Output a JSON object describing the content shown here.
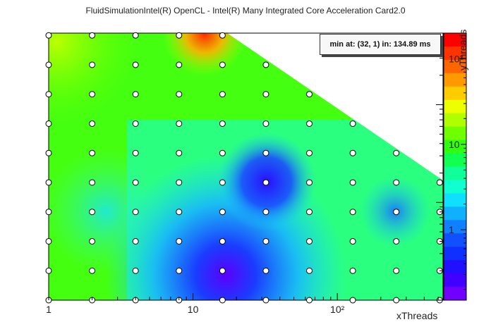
{
  "chart_data": {
    "type": "heatmap",
    "title": "FluidSimulationIntel(R) OpenCL - Intel(R) Many Integrated Core Acceleration Card2.0",
    "xlabel": "xThreads",
    "ylabel": "yThreads",
    "x_scale": "log",
    "y_scale": "log",
    "z_scale": "log",
    "annotation": "min at: (32, 1) in: 134.89 ms",
    "x_tick_labels": [
      "1",
      "10",
      "10²"
    ],
    "y_tick_labels": [
      "1",
      "10",
      "10²"
    ],
    "colorbar_tick_labels": [
      "1",
      "10",
      "10²"
    ],
    "x": [
      1,
      2,
      4,
      8,
      16,
      32,
      64,
      128,
      256,
      512
    ],
    "y": [
      1,
      2,
      4,
      8,
      16,
      32,
      64,
      128,
      256,
      512
    ],
    "sample_points": [
      {
        "x": 1,
        "y": 1
      },
      {
        "x": 1,
        "y": 2
      },
      {
        "x": 1,
        "y": 4
      },
      {
        "x": 1,
        "y": 8
      },
      {
        "x": 1,
        "y": 16
      },
      {
        "x": 1,
        "y": 32
      },
      {
        "x": 1,
        "y": 64
      },
      {
        "x": 1,
        "y": 128
      },
      {
        "x": 1,
        "y": 256
      },
      {
        "x": 1,
        "y": 512
      },
      {
        "x": 2,
        "y": 1
      },
      {
        "x": 2,
        "y": 2
      },
      {
        "x": 2,
        "y": 4
      },
      {
        "x": 2,
        "y": 8
      },
      {
        "x": 2,
        "y": 16
      },
      {
        "x": 2,
        "y": 32
      },
      {
        "x": 2,
        "y": 64
      },
      {
        "x": 2,
        "y": 128
      },
      {
        "x": 2,
        "y": 256
      },
      {
        "x": 2,
        "y": 512
      },
      {
        "x": 4,
        "y": 1
      },
      {
        "x": 4,
        "y": 2
      },
      {
        "x": 4,
        "y": 4
      },
      {
        "x": 4,
        "y": 8
      },
      {
        "x": 4,
        "y": 16
      },
      {
        "x": 4,
        "y": 32
      },
      {
        "x": 4,
        "y": 64
      },
      {
        "x": 4,
        "y": 128
      },
      {
        "x": 4,
        "y": 256
      },
      {
        "x": 4,
        "y": 512
      },
      {
        "x": 8,
        "y": 1
      },
      {
        "x": 8,
        "y": 2
      },
      {
        "x": 8,
        "y": 4
      },
      {
        "x": 8,
        "y": 8
      },
      {
        "x": 8,
        "y": 16
      },
      {
        "x": 8,
        "y": 32
      },
      {
        "x": 8,
        "y": 64
      },
      {
        "x": 8,
        "y": 128
      },
      {
        "x": 8,
        "y": 256
      },
      {
        "x": 8,
        "y": 512
      },
      {
        "x": 16,
        "y": 1
      },
      {
        "x": 16,
        "y": 2
      },
      {
        "x": 16,
        "y": 4
      },
      {
        "x": 16,
        "y": 8
      },
      {
        "x": 16,
        "y": 16
      },
      {
        "x": 16,
        "y": 32
      },
      {
        "x": 16,
        "y": 64
      },
      {
        "x": 16,
        "y": 128
      },
      {
        "x": 16,
        "y": 256
      },
      {
        "x": 16,
        "y": 512
      },
      {
        "x": 32,
        "y": 1
      },
      {
        "x": 32,
        "y": 2
      },
      {
        "x": 32,
        "y": 4
      },
      {
        "x": 32,
        "y": 8
      },
      {
        "x": 32,
        "y": 16
      },
      {
        "x": 32,
        "y": 32
      },
      {
        "x": 32,
        "y": 64
      },
      {
        "x": 32,
        "y": 128
      },
      {
        "x": 32,
        "y": 256
      },
      {
        "x": 64,
        "y": 1
      },
      {
        "x": 64,
        "y": 2
      },
      {
        "x": 64,
        "y": 4
      },
      {
        "x": 64,
        "y": 8
      },
      {
        "x": 64,
        "y": 16
      },
      {
        "x": 64,
        "y": 32
      },
      {
        "x": 64,
        "y": 64
      },
      {
        "x": 64,
        "y": 128
      },
      {
        "x": 128,
        "y": 1
      },
      {
        "x": 128,
        "y": 2
      },
      {
        "x": 128,
        "y": 4
      },
      {
        "x": 128,
        "y": 8
      },
      {
        "x": 128,
        "y": 16
      },
      {
        "x": 128,
        "y": 32
      },
      {
        "x": 128,
        "y": 64
      },
      {
        "x": 256,
        "y": 1
      },
      {
        "x": 256,
        "y": 2
      },
      {
        "x": 256,
        "y": 4
      },
      {
        "x": 256,
        "y": 8
      },
      {
        "x": 256,
        "y": 16
      },
      {
        "x": 256,
        "y": 32
      },
      {
        "x": 512,
        "y": 1
      },
      {
        "x": 512,
        "y": 2
      },
      {
        "x": 512,
        "y": 4
      },
      {
        "x": 512,
        "y": 8
      },
      {
        "x": 512,
        "y": 16
      }
    ]
  }
}
